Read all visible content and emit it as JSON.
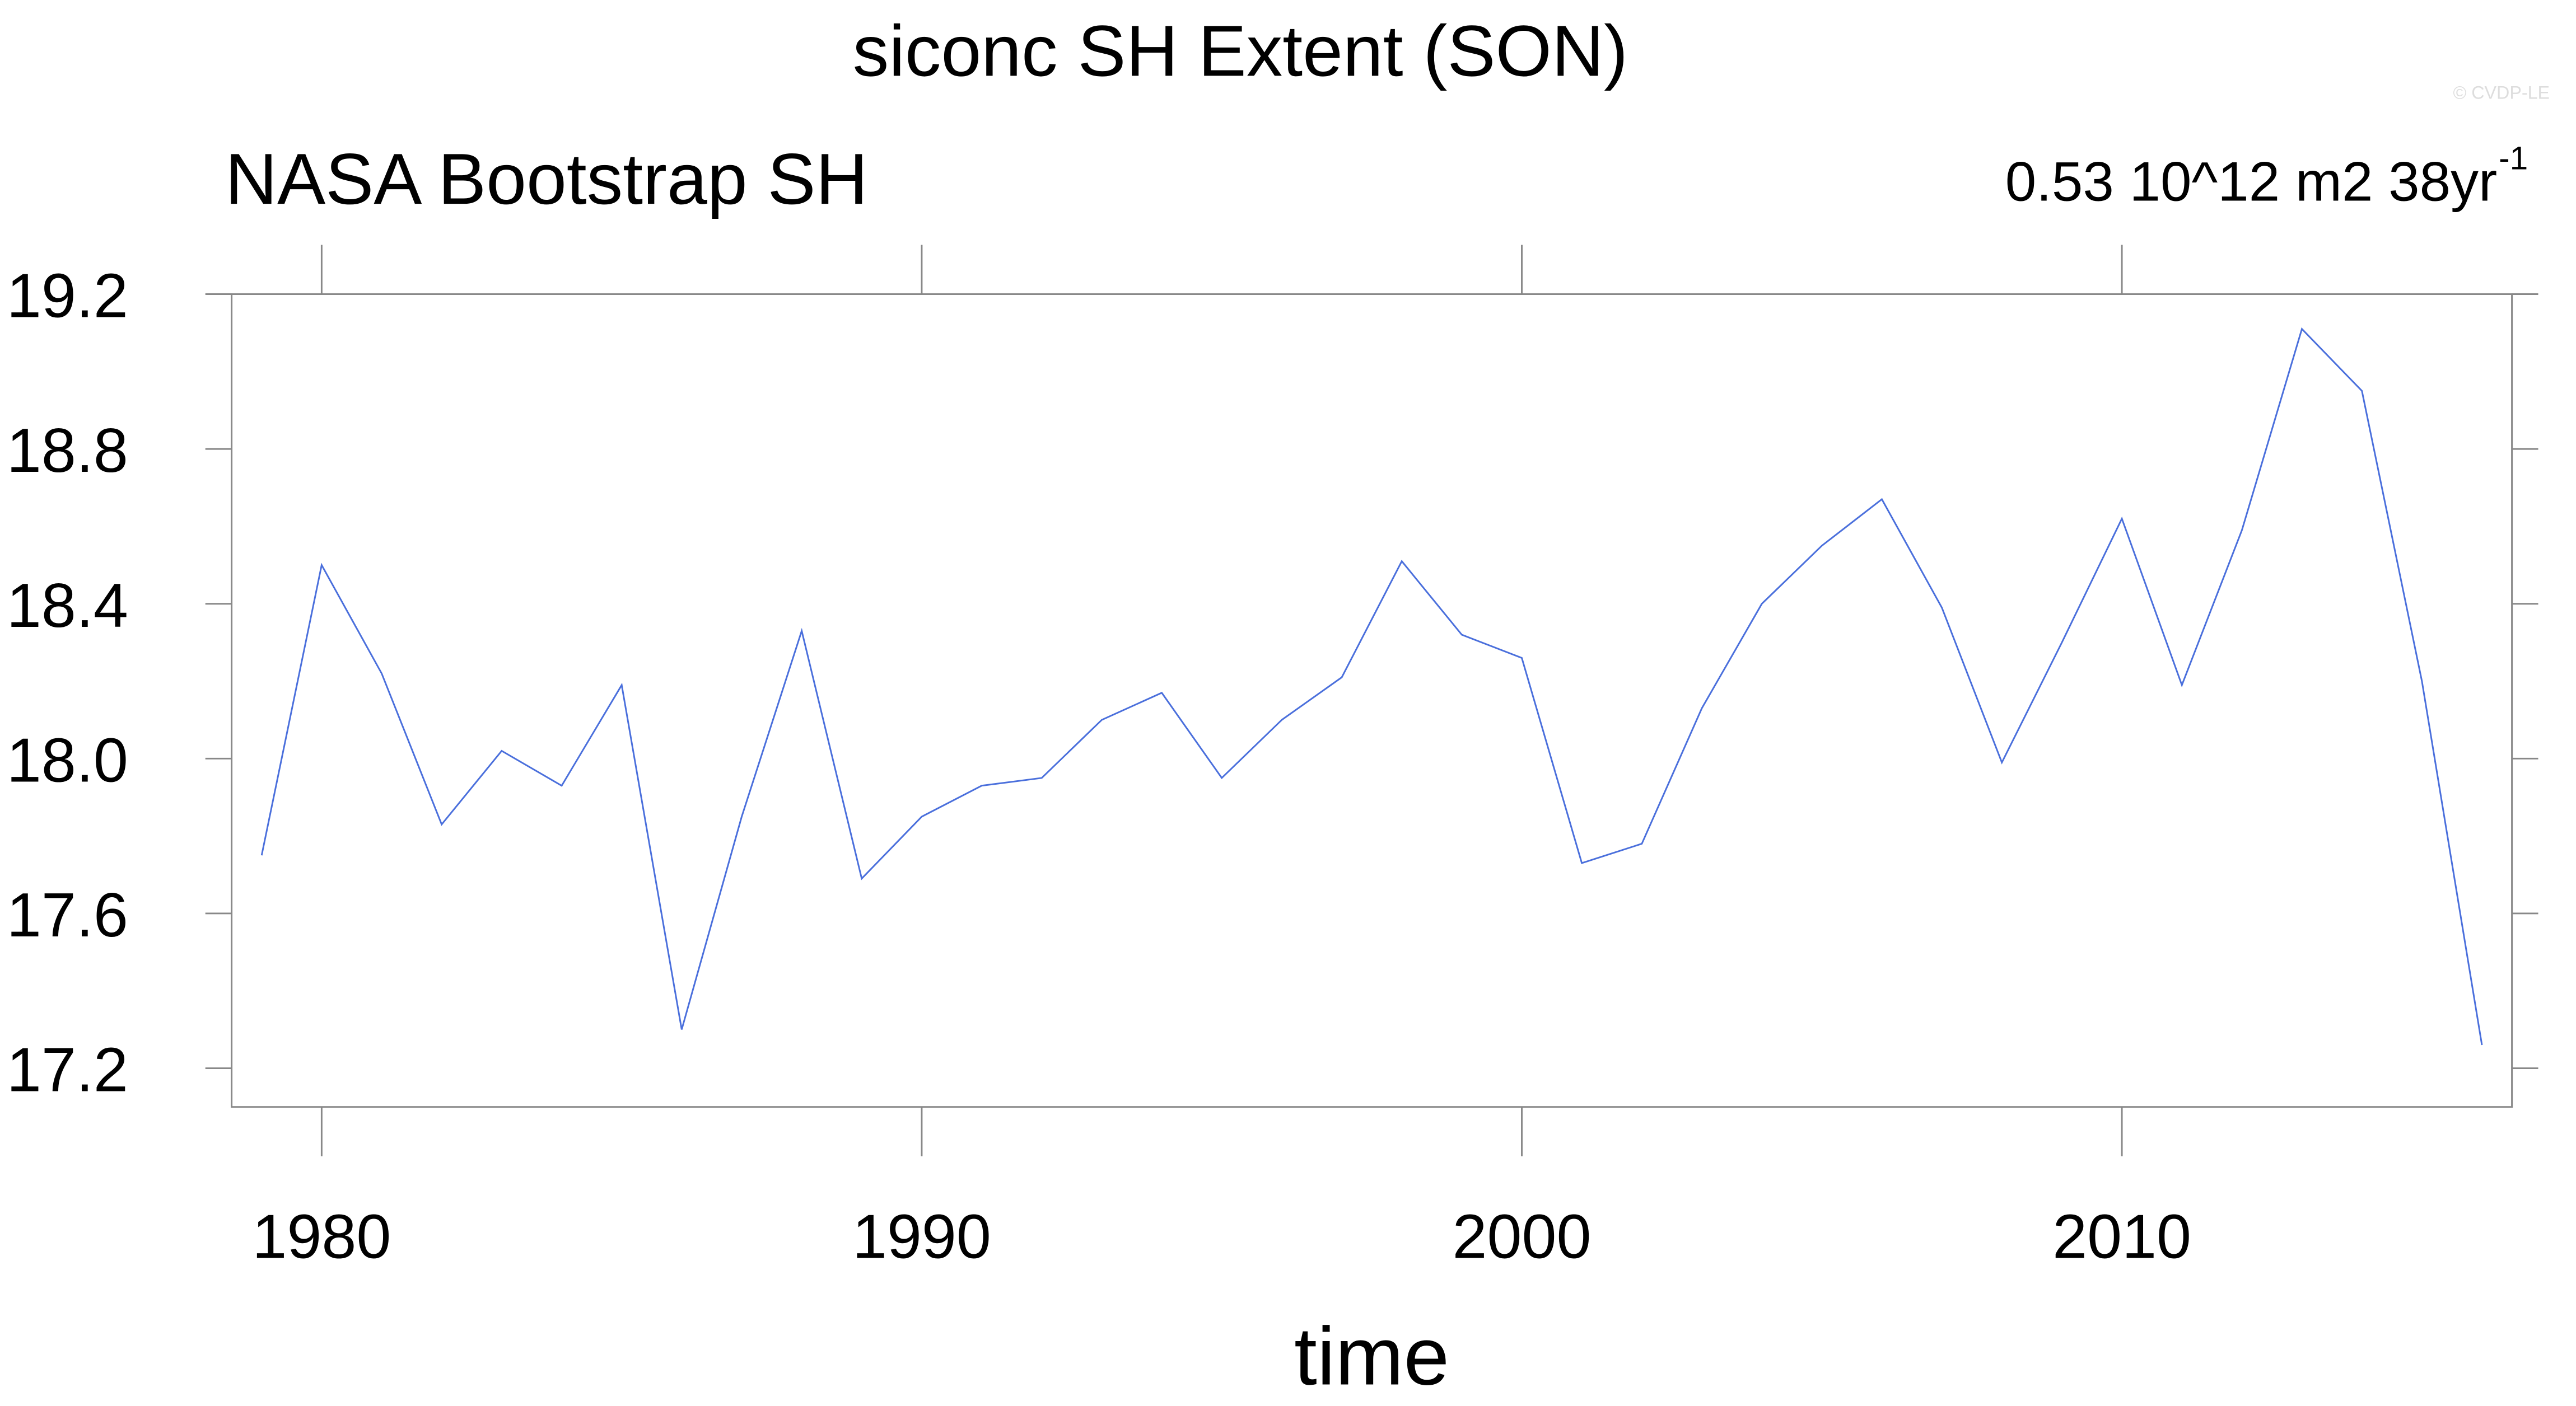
{
  "chart_data": {
    "type": "line",
    "title": "siconc SH Extent (SON)",
    "subtitle_left": "NASA Bootstrap SH",
    "subtitle_right": "0.53 10^12 m2 38yr",
    "subtitle_right_superscript": "-1",
    "watermark": "© CVDP-LE",
    "x_label": "time",
    "x": [
      1979,
      1980,
      1981,
      1982,
      1983,
      1984,
      1985,
      1986,
      1987,
      1988,
      1989,
      1990,
      1991,
      1992,
      1993,
      1994,
      1995,
      1996,
      1997,
      1998,
      1999,
      2000,
      2001,
      2002,
      2003,
      2004,
      2005,
      2006,
      2007,
      2008,
      2009,
      2010,
      2011,
      2012,
      2013,
      2014,
      2015,
      2016
    ],
    "series": [
      {
        "name": "NASA Bootstrap SH",
        "color": "#4a6fdc",
        "values": [
          17.75,
          18.5,
          18.22,
          17.83,
          18.02,
          17.93,
          18.19,
          17.3,
          17.85,
          18.33,
          17.69,
          17.85,
          17.93,
          17.95,
          18.1,
          18.17,
          17.95,
          18.1,
          18.21,
          18.51,
          18.32,
          18.26,
          17.73,
          17.78,
          18.13,
          18.4,
          18.55,
          18.67,
          18.39,
          17.99,
          18.3,
          18.62,
          18.19,
          18.59,
          19.11,
          18.95,
          18.2,
          17.26
        ]
      }
    ],
    "xlim": [
      1978.5,
      2016.5
    ],
    "xticks": [
      1980,
      1990,
      2000,
      2010
    ],
    "ylim": [
      17.1,
      19.2
    ],
    "yticks": [
      17.2,
      17.6,
      {
        "value": 18,
        "label": "18.0"
      },
      18.4,
      18.8,
      19.2
    ],
    "grid": false
  }
}
